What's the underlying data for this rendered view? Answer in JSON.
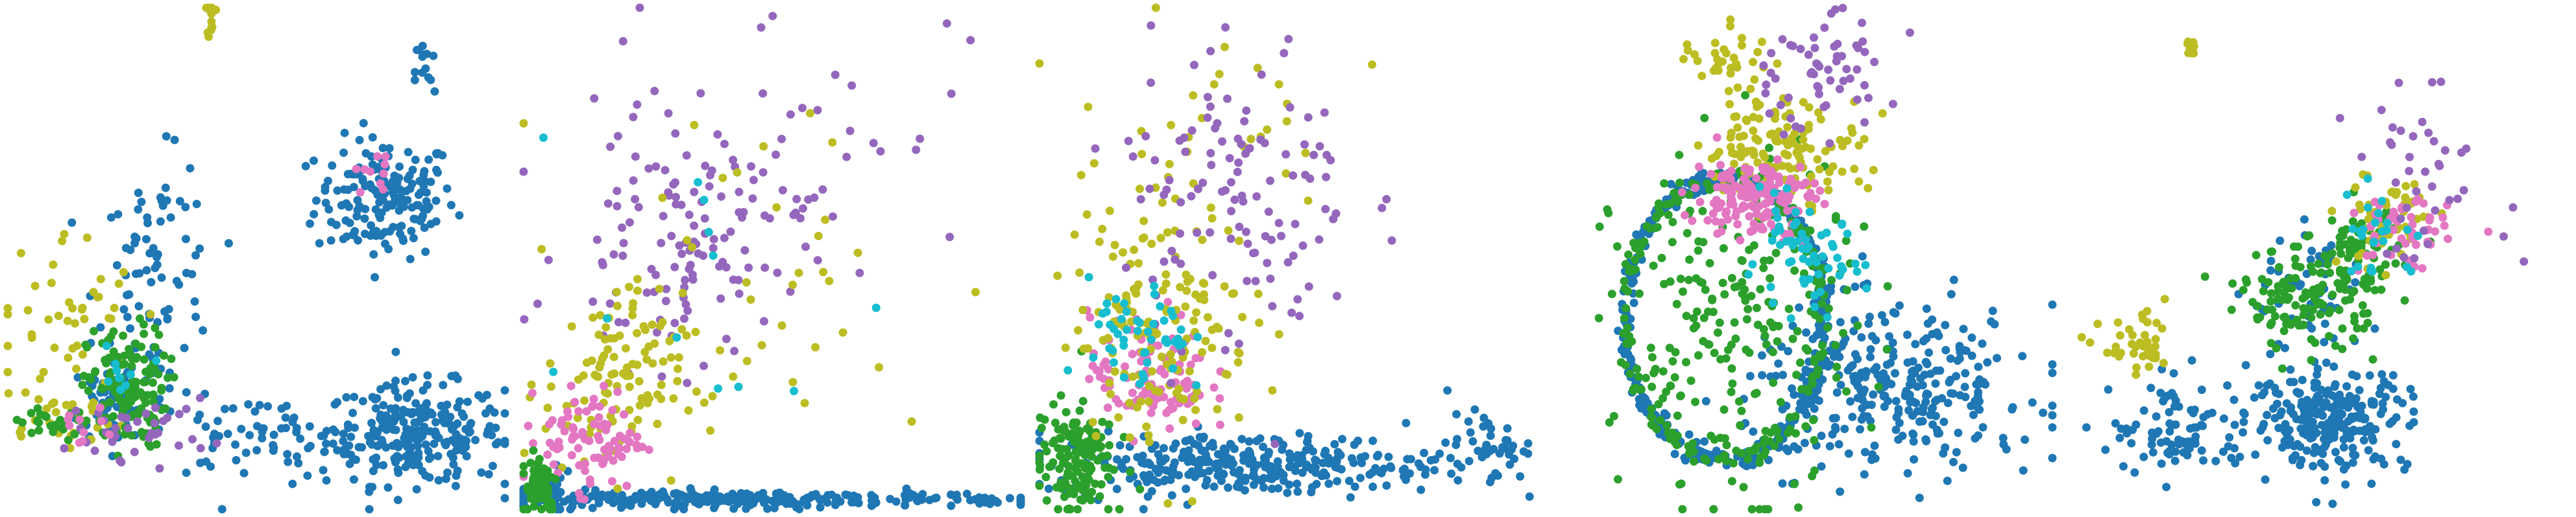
{
  "figure": {
    "description_text": ""
  },
  "palette": {
    "blue": "#1f77b4",
    "olive": "#bcbd22",
    "green": "#2ca02c",
    "purple": "#9467bd",
    "pink": "#e377c2",
    "cyan": "#17becf"
  },
  "chart_data": [
    {
      "type": "scatter",
      "axes": "off",
      "grid": false,
      "legend": "none",
      "xlim": [
        0,
        1
      ],
      "ylim": [
        0,
        1
      ],
      "series": [
        {
          "color": "blue",
          "clusters": [
            {
              "cx": 0.76,
              "cy": 0.62,
              "sx": 0.07,
              "sy": 0.06,
              "n": 170
            },
            {
              "cx": 0.82,
              "cy": 0.15,
              "sx": 0.09,
              "sy": 0.05,
              "n": 260
            },
            {
              "cx": 0.3,
              "cy": 0.45,
              "sx": 0.06,
              "sy": 0.12,
              "n": 90
            },
            {
              "cx": 0.5,
              "cy": 0.14,
              "sx": 0.12,
              "sy": 0.04,
              "n": 70
            },
            {
              "cx": 0.84,
              "cy": 0.87,
              "sx": 0.01,
              "sy": 0.04,
              "n": 14
            },
            {
              "cx": 0.22,
              "cy": 0.22,
              "sx": 0.05,
              "sy": 0.04,
              "n": 60
            }
          ]
        },
        {
          "color": "olive",
          "clusters": [
            {
              "cx": 0.12,
              "cy": 0.38,
              "sx": 0.07,
              "sy": 0.09,
              "n": 45
            },
            {
              "cx": 0.41,
              "cy": 0.98,
              "sx": 0.004,
              "sy": 0.02,
              "n": 12
            },
            {
              "cx": 0.1,
              "cy": 0.18,
              "sx": 0.07,
              "sy": 0.03,
              "n": 30
            }
          ]
        },
        {
          "color": "green",
          "clusters": [
            {
              "cx": 0.24,
              "cy": 0.24,
              "sx": 0.04,
              "sy": 0.06,
              "n": 130
            },
            {
              "cx": 0.12,
              "cy": 0.17,
              "sx": 0.07,
              "sy": 0.02,
              "n": 35
            }
          ]
        },
        {
          "color": "purple",
          "clusters": [
            {
              "cx": 0.27,
              "cy": 0.16,
              "sx": 0.07,
              "sy": 0.03,
              "n": 35
            }
          ]
        },
        {
          "color": "pink",
          "clusters": [
            {
              "cx": 0.74,
              "cy": 0.67,
              "sx": 0.02,
              "sy": 0.02,
              "n": 10
            },
            {
              "cx": 0.14,
              "cy": 0.17,
              "sx": 0.03,
              "sy": 0.02,
              "n": 10
            }
          ]
        },
        {
          "color": "cyan",
          "clusters": [
            {
              "cx": 0.22,
              "cy": 0.26,
              "sx": 0.03,
              "sy": 0.03,
              "n": 10
            }
          ]
        }
      ]
    },
    {
      "type": "scatter",
      "axes": "off",
      "grid": false,
      "legend": "none",
      "xlim": [
        0,
        1
      ],
      "ylim": [
        0,
        1
      ],
      "series": [
        {
          "color": "blue",
          "clusters": [
            {
              "cx": 0.45,
              "cy": 0.02,
              "sx": 0.28,
              "sy": 0.008,
              "n": 280
            },
            {
              "cx": 0.04,
              "cy": 0.03,
              "sx": 0.03,
              "sy": 0.02,
              "n": 40
            }
          ]
        },
        {
          "color": "purple",
          "clusters": [
            {
              "cx": 0.32,
              "cy": 0.52,
              "sx": 0.12,
              "sy": 0.12,
              "n": 120
            },
            {
              "cx": 0.52,
              "cy": 0.78,
              "sx": 0.18,
              "sy": 0.13,
              "n": 40
            }
          ]
        },
        {
          "color": "olive",
          "clusters": [
            {
              "cx": 0.18,
              "cy": 0.25,
              "sx": 0.07,
              "sy": 0.09,
              "n": 110
            },
            {
              "cx": 0.45,
              "cy": 0.45,
              "sx": 0.22,
              "sy": 0.2,
              "n": 40
            }
          ]
        },
        {
          "color": "pink",
          "clusters": [
            {
              "cx": 0.14,
              "cy": 0.14,
              "sx": 0.05,
              "sy": 0.05,
              "n": 90
            }
          ]
        },
        {
          "color": "green",
          "clusters": [
            {
              "cx": 0.03,
              "cy": 0.05,
              "sx": 0.02,
              "sy": 0.04,
              "n": 60
            }
          ]
        },
        {
          "color": "cyan",
          "clusters": [
            {
              "cx": 0.42,
              "cy": 0.35,
              "sx": 0.2,
              "sy": 0.2,
              "n": 12
            }
          ]
        }
      ]
    },
    {
      "type": "scatter",
      "axes": "off",
      "grid": false,
      "legend": "none",
      "xlim": [
        0,
        1
      ],
      "ylim": [
        0,
        1
      ],
      "series": [
        {
          "color": "blue",
          "clusters": [
            {
              "cx": 0.42,
              "cy": 0.09,
              "sx": 0.2,
              "sy": 0.03,
              "n": 320
            },
            {
              "cx": 0.9,
              "cy": 0.13,
              "sx": 0.04,
              "sy": 0.03,
              "n": 40
            }
          ]
        },
        {
          "color": "green",
          "clusters": [
            {
              "cx": 0.07,
              "cy": 0.1,
              "sx": 0.04,
              "sy": 0.06,
              "n": 150
            }
          ]
        },
        {
          "color": "pink",
          "clusters": [
            {
              "cx": 0.22,
              "cy": 0.27,
              "sx": 0.06,
              "sy": 0.06,
              "n": 110
            }
          ]
        },
        {
          "color": "olive",
          "clusters": [
            {
              "cx": 0.25,
              "cy": 0.38,
              "sx": 0.09,
              "sy": 0.12,
              "n": 160
            },
            {
              "cx": 0.3,
              "cy": 0.8,
              "sx": 0.15,
              "sy": 0.1,
              "n": 30
            }
          ]
        },
        {
          "color": "purple",
          "clusters": [
            {
              "cx": 0.4,
              "cy": 0.63,
              "sx": 0.12,
              "sy": 0.16,
              "n": 120
            }
          ]
        },
        {
          "color": "cyan",
          "clusters": [
            {
              "cx": 0.2,
              "cy": 0.33,
              "sx": 0.05,
              "sy": 0.06,
              "n": 50
            }
          ]
        }
      ]
    },
    {
      "type": "scatter",
      "axes": "off",
      "grid": false,
      "legend": "none",
      "xlim": [
        0,
        1
      ],
      "ylim": [
        0,
        1
      ],
      "ring": {
        "cx": 0.34,
        "cy": 0.38,
        "rx": 0.2,
        "ry": 0.28
      },
      "series": [
        {
          "color": "blue",
          "clusters": [
            {
              "cx": 0.68,
              "cy": 0.24,
              "sx": 0.15,
              "sy": 0.08,
              "n": 320
            }
          ],
          "ring_points": 420
        },
        {
          "color": "green",
          "clusters": [
            {
              "cx": 0.36,
              "cy": 0.36,
              "sx": 0.12,
              "sy": 0.17,
              "n": 230
            }
          ],
          "ring_points": 160
        },
        {
          "color": "olive",
          "clusters": [
            {
              "cx": 0.46,
              "cy": 0.72,
              "sx": 0.08,
              "sy": 0.05,
              "n": 130
            },
            {
              "cx": 0.35,
              "cy": 0.9,
              "sx": 0.05,
              "sy": 0.04,
              "n": 35
            }
          ]
        },
        {
          "color": "pink",
          "clusters": [
            {
              "cx": 0.4,
              "cy": 0.62,
              "sx": 0.06,
              "sy": 0.04,
              "n": 150
            }
          ]
        },
        {
          "color": "purple",
          "clusters": [
            {
              "cx": 0.52,
              "cy": 0.87,
              "sx": 0.08,
              "sy": 0.06,
              "n": 60
            }
          ]
        },
        {
          "color": "cyan",
          "clusters": [
            {
              "cx": 0.5,
              "cy": 0.5,
              "sx": 0.06,
              "sy": 0.05,
              "n": 60
            }
          ]
        }
      ]
    },
    {
      "type": "scatter",
      "axes": "off",
      "grid": false,
      "legend": "none",
      "xlim": [
        0,
        1
      ],
      "ylim": [
        0,
        1
      ],
      "series": [
        {
          "color": "blue",
          "clusters": [
            {
              "cx": 0.52,
              "cy": 0.18,
              "sx": 0.08,
              "sy": 0.05,
              "n": 260
            },
            {
              "cx": 0.22,
              "cy": 0.16,
              "sx": 0.07,
              "sy": 0.05,
              "n": 90
            },
            {
              "cx": 0.48,
              "cy": 0.42,
              "sx": 0.06,
              "sy": 0.06,
              "n": 60
            }
          ]
        },
        {
          "color": "green",
          "clusters": [
            {
              "cx": 0.48,
              "cy": 0.42,
              "sx": 0.07,
              "sy": 0.05,
              "n": 140
            },
            {
              "cx": 0.58,
              "cy": 0.52,
              "sx": 0.04,
              "sy": 0.04,
              "n": 60
            }
          ]
        },
        {
          "color": "olive",
          "clusters": [
            {
              "cx": 0.14,
              "cy": 0.32,
              "sx": 0.04,
              "sy": 0.03,
              "n": 40
            },
            {
              "cx": 0.64,
              "cy": 0.58,
              "sx": 0.05,
              "sy": 0.05,
              "n": 50
            },
            {
              "cx": 0.24,
              "cy": 0.92,
              "sx": 0.006,
              "sy": 0.015,
              "n": 14
            }
          ]
        },
        {
          "color": "pink",
          "clusters": [
            {
              "cx": 0.66,
              "cy": 0.55,
              "sx": 0.05,
              "sy": 0.04,
              "n": 50
            }
          ]
        },
        {
          "color": "purple",
          "clusters": [
            {
              "cx": 0.72,
              "cy": 0.66,
              "sx": 0.08,
              "sy": 0.08,
              "n": 40
            }
          ]
        },
        {
          "color": "cyan",
          "clusters": [
            {
              "cx": 0.62,
              "cy": 0.55,
              "sx": 0.05,
              "sy": 0.05,
              "n": 25
            }
          ]
        }
      ]
    }
  ]
}
